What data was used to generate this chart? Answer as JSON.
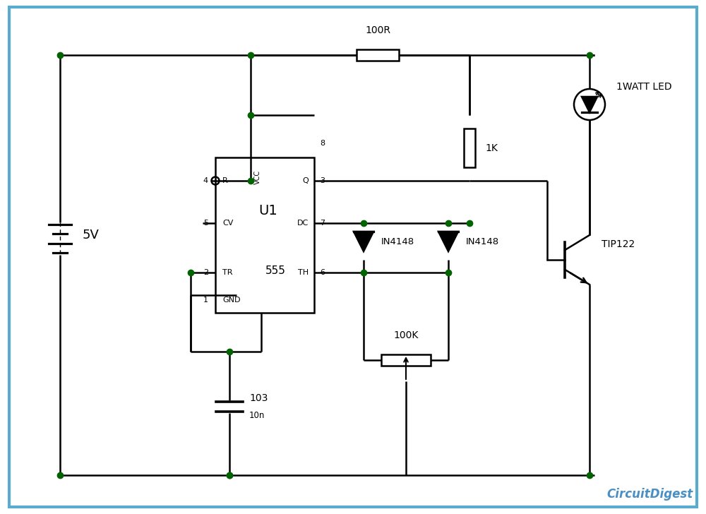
{
  "bg_color": "#ffffff",
  "border_color": "#5aabcf",
  "line_color": "#000000",
  "dot_color": "#006400",
  "watermark": "CircuitDigest",
  "watermark_color": "#4a90c4",
  "labels": {
    "battery_v": "5V",
    "ic_name": "U1",
    "ic_555": "555",
    "pin_r": "R",
    "pin_vcc": "VCC",
    "pin_q": "Q",
    "pin_dc": "DC",
    "pin_cv": "CV",
    "pin_tr": "TR",
    "pin_gnd": "GND",
    "pin_th": "TH",
    "n4": "4",
    "n8": "8",
    "n3": "3",
    "n7": "7",
    "n5": "5",
    "n2": "2",
    "n1": "1",
    "n6": "6",
    "r100": "100R",
    "r1k": "1K",
    "r100k": "100K",
    "c103": "103",
    "c10n": "10n",
    "d1": "IN4148",
    "d2": "IN4148",
    "transistor": "TIP122",
    "led": "1WATT LED"
  }
}
